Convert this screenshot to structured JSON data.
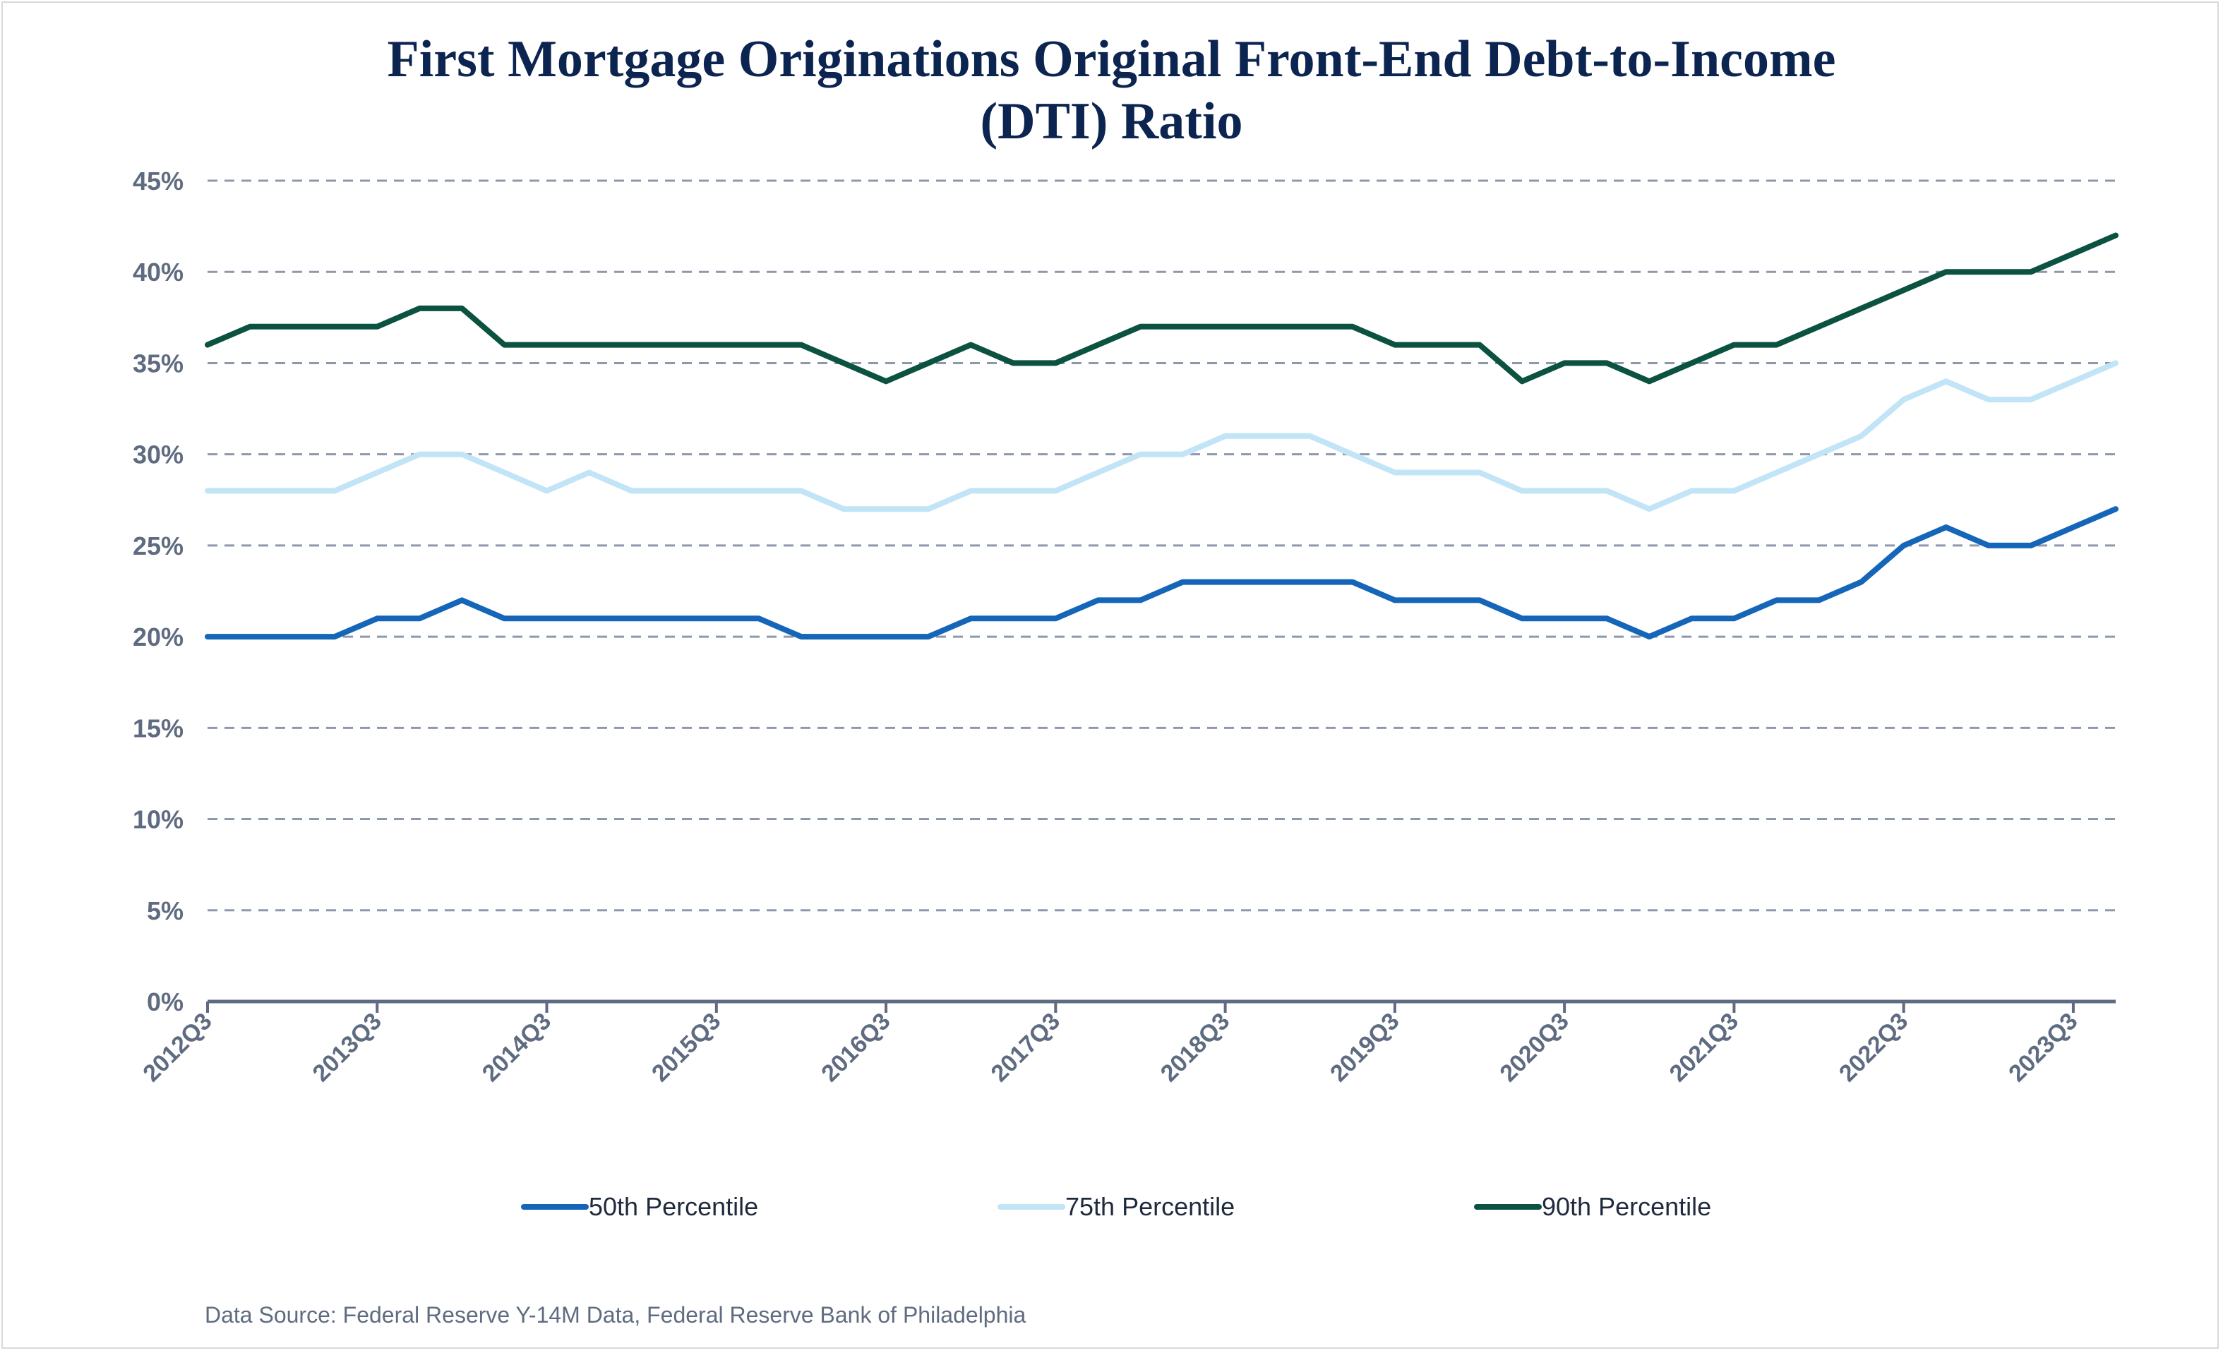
{
  "chart_data": {
    "type": "line",
    "title": [
      "First Mortgage Originations Original Front-End Debt-to-Income",
      "(DTI) Ratio"
    ],
    "xlabel": "",
    "ylabel": "",
    "ylim": [
      0,
      45
    ],
    "y_ticks": [
      "0%",
      "5%",
      "10%",
      "15%",
      "20%",
      "25%",
      "30%",
      "35%",
      "40%",
      "45%"
    ],
    "y_tick_values": [
      0,
      5,
      10,
      15,
      20,
      25,
      30,
      35,
      40,
      45
    ],
    "x": [
      "2012Q3",
      "2012Q4",
      "2013Q1",
      "2013Q2",
      "2013Q3",
      "2013Q4",
      "2014Q1",
      "2014Q2",
      "2014Q3",
      "2014Q4",
      "2015Q1",
      "2015Q2",
      "2015Q3",
      "2015Q4",
      "2016Q1",
      "2016Q2",
      "2016Q3",
      "2016Q4",
      "2017Q1",
      "2017Q2",
      "2017Q3",
      "2017Q4",
      "2018Q1",
      "2018Q2",
      "2018Q3",
      "2018Q4",
      "2019Q1",
      "2019Q2",
      "2019Q3",
      "2019Q4",
      "2020Q1",
      "2020Q2",
      "2020Q3",
      "2020Q4",
      "2021Q1",
      "2021Q2",
      "2021Q3",
      "2021Q4",
      "2022Q1",
      "2022Q2",
      "2022Q3",
      "2022Q4",
      "2023Q1",
      "2023Q2",
      "2023Q3",
      "2023Q4"
    ],
    "x_tick_labels": [
      "2012Q3",
      "2013Q3",
      "2014Q3",
      "2015Q3",
      "2016Q3",
      "2017Q3",
      "2018Q3",
      "2019Q3",
      "2020Q3",
      "2021Q3",
      "2022Q3",
      "2023Q3"
    ],
    "grid": "horizontal dashed",
    "legend_position": "bottom",
    "series": [
      {
        "name": "50th Percentile",
        "color": "#1565b8",
        "values": [
          20,
          20,
          20,
          20,
          21,
          21,
          22,
          21,
          21,
          21,
          21,
          21,
          21,
          21,
          20,
          20,
          20,
          20,
          21,
          21,
          21,
          22,
          22,
          23,
          23,
          23,
          23,
          23,
          22,
          22,
          22,
          21,
          21,
          21,
          20,
          21,
          21,
          22,
          22,
          23,
          25,
          26,
          25,
          25,
          26,
          27
        ]
      },
      {
        "name": "75th Percentile",
        "color": "#c2e4f7",
        "values": [
          28,
          28,
          28,
          28,
          29,
          30,
          30,
          29,
          28,
          29,
          28,
          28,
          28,
          28,
          28,
          27,
          27,
          27,
          28,
          28,
          28,
          29,
          30,
          30,
          31,
          31,
          31,
          30,
          29,
          29,
          29,
          28,
          28,
          28,
          27,
          28,
          28,
          29,
          30,
          31,
          33,
          34,
          33,
          33,
          34,
          35
        ]
      },
      {
        "name": "90th Percentile",
        "color": "#0b5240",
        "values": [
          36,
          37,
          37,
          37,
          37,
          38,
          38,
          36,
          36,
          36,
          36,
          36,
          36,
          36,
          36,
          35,
          34,
          35,
          36,
          35,
          35,
          36,
          37,
          37,
          37,
          37,
          37,
          37,
          36,
          36,
          36,
          34,
          35,
          35,
          34,
          35,
          36,
          36,
          37,
          38,
          39,
          40,
          40,
          40,
          41,
          42
        ]
      }
    ]
  },
  "source": "Data Source: Federal Reserve Y-14M Data, Federal Reserve Bank of Philadelphia"
}
